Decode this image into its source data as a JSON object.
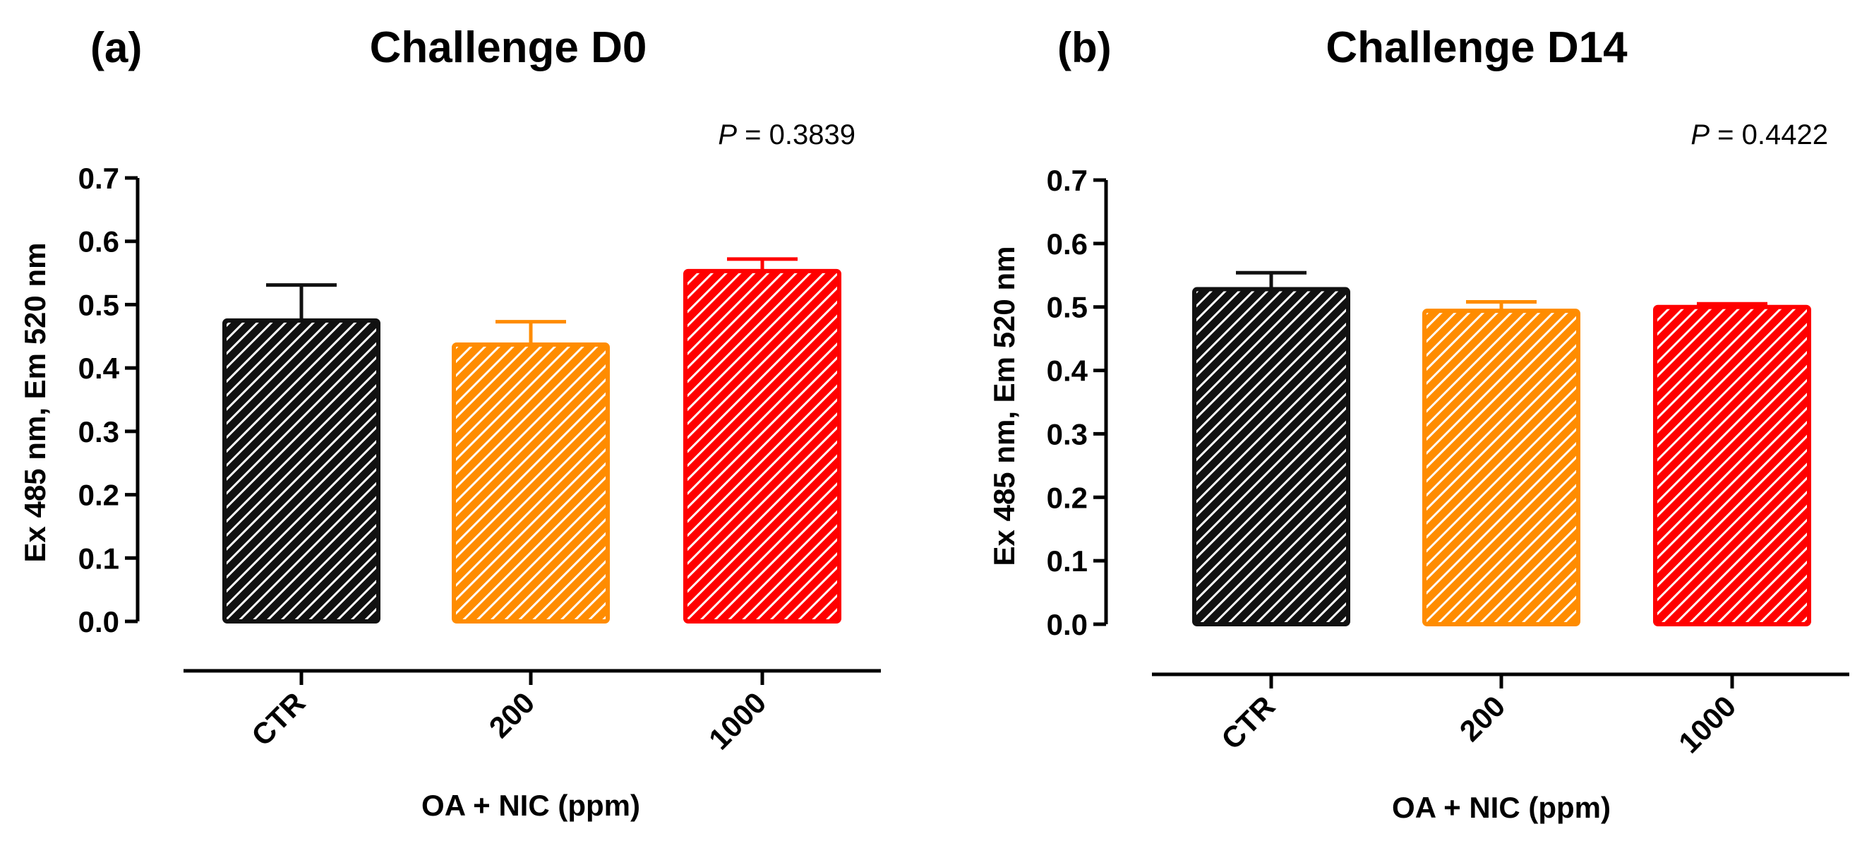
{
  "colors": {
    "CTR": "#111111",
    "200": "#ff8c00",
    "1000": "#ff0000",
    "axis": "#000000"
  },
  "chart_data": [
    {
      "type": "bar",
      "panel": "(a)",
      "title": "Challenge D0",
      "p_label": "P",
      "p_value": " = 0.3839",
      "categories": [
        "CTR",
        "200",
        "1000"
      ],
      "values": [
        0.475,
        0.437,
        0.553
      ],
      "errors": [
        0.056,
        0.036,
        0.019
      ],
      "xlabel": "OA + NIC (ppm)",
      "ylabel": "Ex 485 nm, Em 520 nm",
      "ylim": [
        0.0,
        0.7
      ],
      "yticks": [
        "0.0",
        "0.1",
        "0.2",
        "0.3",
        "0.4",
        "0.5",
        "0.6",
        "0.7"
      ],
      "pattern": "diagonal-hatch"
    },
    {
      "type": "bar",
      "panel": "(b)",
      "title": "Challenge D14",
      "p_label": "P",
      "p_value": " = 0.4422",
      "categories": [
        "CTR",
        "200",
        "1000"
      ],
      "values": [
        0.528,
        0.494,
        0.5
      ],
      "errors": [
        0.026,
        0.014,
        0.005
      ],
      "xlabel": "OA + NIC (ppm)",
      "ylabel": "Ex 485 nm, Em 520 nm",
      "ylim": [
        0.0,
        0.7
      ],
      "yticks": [
        "0.0",
        "0.1",
        "0.2",
        "0.3",
        "0.4",
        "0.5",
        "0.6",
        "0.7"
      ],
      "pattern": "diagonal-hatch"
    }
  ]
}
